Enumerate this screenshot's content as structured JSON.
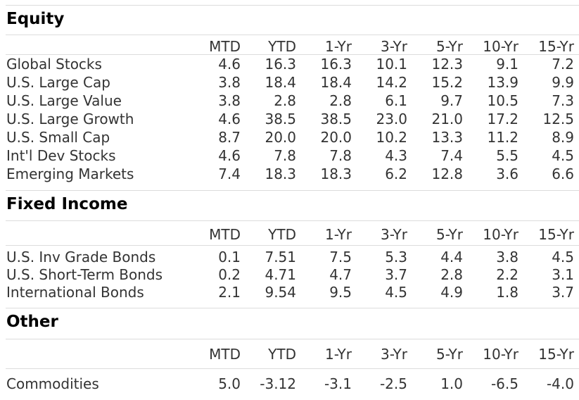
{
  "columns": [
    "MTD",
    "YTD",
    "1-Yr",
    "3-Yr",
    "5-Yr",
    "10-Yr",
    "15-Yr"
  ],
  "sections": [
    {
      "title": "Equity",
      "rows": [
        {
          "label": "Global Stocks",
          "values": [
            "4.6",
            "16.3",
            "16.3",
            "10.1",
            "12.3",
            "9.1",
            "7.2"
          ]
        },
        {
          "label": "U.S. Large Cap",
          "values": [
            "3.8",
            "18.4",
            "18.4",
            "14.2",
            "15.2",
            "13.9",
            "9.9"
          ]
        },
        {
          "label": "U.S. Large Value",
          "values": [
            "3.8",
            "2.8",
            "2.8",
            "6.1",
            "9.7",
            "10.5",
            "7.3"
          ]
        },
        {
          "label": "U.S. Large Growth",
          "values": [
            "4.6",
            "38.5",
            "38.5",
            "23.0",
            "21.0",
            "17.2",
            "12.5"
          ]
        },
        {
          "label": "U.S. Small Cap",
          "values": [
            "8.7",
            "20.0",
            "20.0",
            "10.2",
            "13.3",
            "11.2",
            "8.9"
          ]
        },
        {
          "label": "Int'l Dev Stocks",
          "values": [
            "4.6",
            "7.8",
            "7.8",
            "4.3",
            "7.4",
            "5.5",
            "4.5"
          ]
        },
        {
          "label": "Emerging Markets",
          "values": [
            "7.4",
            "18.3",
            "18.3",
            "6.2",
            "12.8",
            "3.6",
            "6.6"
          ]
        }
      ]
    },
    {
      "title": "Fixed Income",
      "rows": [
        {
          "label": "U.S. Inv Grade Bonds",
          "values": [
            "0.1",
            "7.51",
            "7.5",
            "5.3",
            "4.4",
            "3.8",
            "4.5"
          ]
        },
        {
          "label": "U.S. Short-Term Bonds",
          "values": [
            "0.2",
            "4.71",
            "4.7",
            "3.7",
            "2.8",
            "2.2",
            "3.1"
          ]
        },
        {
          "label": "International Bonds",
          "values": [
            "2.1",
            "9.54",
            "9.5",
            "4.5",
            "4.9",
            "1.8",
            "3.7"
          ]
        }
      ]
    },
    {
      "title": "Other",
      "rows": [
        {
          "label": "Commodities",
          "values": [
            "5.0",
            "-3.12",
            "-3.1",
            "-2.5",
            "1.0",
            "-6.5",
            "-4.0"
          ]
        }
      ]
    }
  ]
}
